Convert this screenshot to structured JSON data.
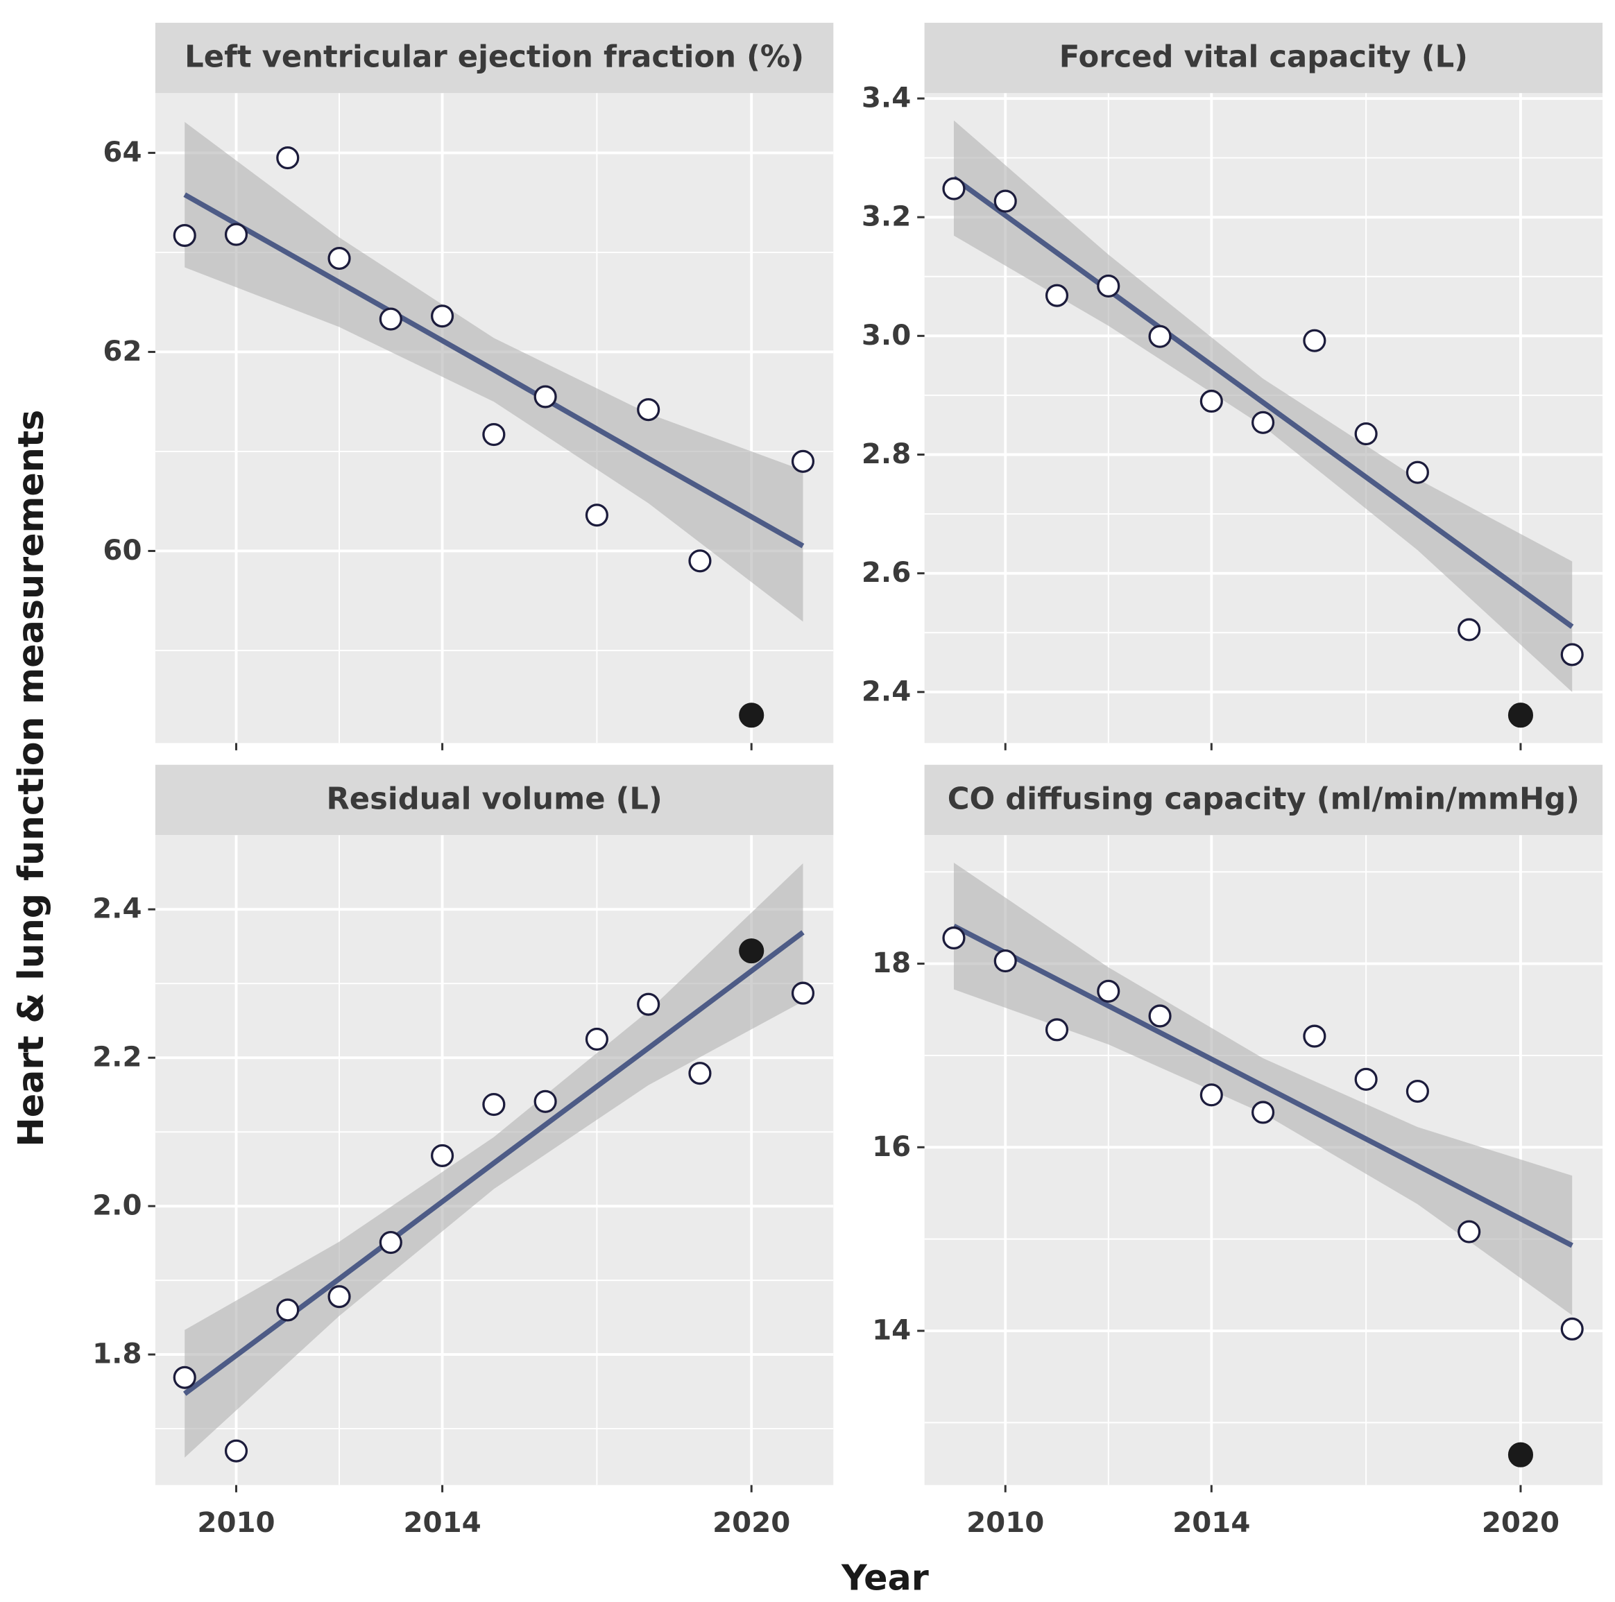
{
  "axis_titles": {
    "x": "Year",
    "y": "Heart & lung function measurements"
  },
  "chart_data": [
    {
      "type": "scatter",
      "title": "Left ventricular ejection fraction (%)",
      "x": [
        2009,
        2010,
        2011,
        2012,
        2013,
        2014,
        2015,
        2016,
        2017,
        2018,
        2019,
        2020,
        2021
      ],
      "values": [
        63.17,
        63.18,
        63.95,
        62.94,
        62.33,
        62.36,
        61.17,
        61.55,
        60.36,
        61.42,
        59.9,
        58.35,
        60.9
      ],
      "filled": [
        false,
        false,
        false,
        false,
        false,
        false,
        false,
        false,
        false,
        false,
        false,
        true,
        false
      ],
      "fit": {
        "x": [
          2009,
          2012,
          2015,
          2018,
          2021
        ],
        "values": [
          63.58,
          62.7,
          61.82,
          60.93,
          60.05
        ],
        "upper": [
          64.31,
          63.15,
          62.14,
          61.38,
          60.81
        ],
        "lower": [
          62.85,
          62.25,
          61.5,
          60.48,
          59.29
        ]
      },
      "xlim": [
        2008.43,
        2021.59
      ],
      "ylim": [
        58.07,
        64.6
      ],
      "xticks": [
        2010,
        2014,
        2020
      ],
      "minor_xticks": [
        2012,
        2017
      ],
      "yticks": [
        60,
        62,
        64
      ],
      "minor_yticks": [
        59,
        61,
        63
      ],
      "point_color": "#1c1c3c",
      "filled_color": "#1a1a1a",
      "line_color": "#4d5b86",
      "band_color": "#b3b3b3",
      "grid": true
    },
    {
      "type": "scatter",
      "title": "Forced vital capacity (L)",
      "x": [
        2009,
        2010,
        2011,
        2012,
        2013,
        2014,
        2015,
        2016,
        2017,
        2018,
        2019,
        2020,
        2021
      ],
      "values": [
        3.248,
        3.227,
        3.068,
        3.084,
        2.999,
        2.89,
        2.854,
        2.992,
        2.835,
        2.77,
        2.505,
        2.361,
        2.463
      ],
      "filled": [
        false,
        false,
        false,
        false,
        false,
        false,
        false,
        false,
        false,
        false,
        false,
        true,
        false
      ],
      "fit": {
        "x": [
          2009,
          2012,
          2015,
          2018,
          2021
        ],
        "values": [
          3.266,
          3.077,
          2.888,
          2.699,
          2.51
        ],
        "upper": [
          3.363,
          3.137,
          2.928,
          2.759,
          2.62
        ],
        "lower": [
          3.169,
          3.017,
          2.848,
          2.639,
          2.4
        ]
      },
      "xlim": [
        2008.43,
        2021.59
      ],
      "ylim": [
        2.314,
        3.409
      ],
      "xticks": [
        2010,
        2014,
        2020
      ],
      "minor_xticks": [
        2012,
        2017
      ],
      "yticks": [
        2.4,
        2.6,
        2.8,
        {
          "value": 3,
          "label": "3.0"
        },
        3.2,
        3.4
      ],
      "minor_yticks": [
        2.5,
        2.7,
        2.9,
        3.1,
        3.3
      ],
      "point_color": "#1c1c3c",
      "filled_color": "#1a1a1a",
      "line_color": "#4d5b86",
      "band_color": "#b3b3b3",
      "grid": true
    },
    {
      "type": "scatter",
      "title": "Residual volume (L)",
      "x": [
        2009,
        2010,
        2011,
        2012,
        2013,
        2014,
        2015,
        2016,
        2017,
        2018,
        2019,
        2020,
        2021
      ],
      "values": [
        1.769,
        1.67,
        1.86,
        1.878,
        1.951,
        2.068,
        2.137,
        2.141,
        2.225,
        2.272,
        2.179,
        2.344,
        2.287
      ],
      "filled": [
        false,
        false,
        false,
        false,
        false,
        false,
        false,
        false,
        false,
        false,
        false,
        true,
        false
      ],
      "fit": {
        "x": [
          2009,
          2012,
          2015,
          2018,
          2021
        ],
        "values": [
          1.747,
          1.902,
          2.058,
          2.213,
          2.369
        ],
        "upper": [
          1.833,
          1.952,
          2.093,
          2.263,
          2.462
        ],
        "lower": [
          1.661,
          1.852,
          2.023,
          2.163,
          2.276
        ]
      },
      "xlim": [
        2008.43,
        2021.59
      ],
      "ylim": [
        1.624,
        2.5
      ],
      "xticks": [
        2010,
        2014,
        2020
      ],
      "minor_xticks": [
        2012,
        2017
      ],
      "yticks": [
        1.8,
        {
          "value": 2,
          "label": "2.0"
        },
        2.2,
        2.4
      ],
      "minor_yticks": [
        1.7,
        1.9,
        2.1,
        2.3
      ],
      "point_color": "#1c1c3c",
      "filled_color": "#1a1a1a",
      "line_color": "#4d5b86",
      "band_color": "#b3b3b3",
      "grid": true
    },
    {
      "type": "scatter",
      "title": "CO diffusing capacity (ml/min/mmHg)",
      "x": [
        2009,
        2010,
        2011,
        2012,
        2013,
        2014,
        2015,
        2016,
        2017,
        2018,
        2019,
        2020,
        2021
      ],
      "values": [
        18.28,
        18.03,
        17.28,
        17.7,
        17.43,
        16.57,
        16.38,
        17.21,
        16.74,
        16.61,
        15.08,
        12.65,
        14.02
      ],
      "filled": [
        false,
        false,
        false,
        false,
        false,
        false,
        false,
        false,
        false,
        false,
        false,
        true,
        false
      ],
      "fit": {
        "x": [
          2009,
          2012,
          2015,
          2018,
          2021
        ],
        "values": [
          18.41,
          17.54,
          16.67,
          15.8,
          14.93
        ],
        "upper": [
          19.1,
          17.96,
          16.97,
          16.22,
          15.69
        ],
        "lower": [
          17.72,
          17.12,
          16.37,
          15.38,
          14.17
        ]
      },
      "xlim": [
        2008.43,
        2021.59
      ],
      "ylim": [
        12.32,
        19.4
      ],
      "xticks": [
        2010,
        2014,
        2020
      ],
      "minor_xticks": [
        2012,
        2017
      ],
      "yticks": [
        14,
        16,
        18
      ],
      "minor_yticks": [
        13,
        15,
        17,
        19
      ],
      "point_color": "#1c1c3c",
      "filled_color": "#1a1a1a",
      "line_color": "#4d5b86",
      "band_color": "#b3b3b3",
      "grid": true
    }
  ]
}
